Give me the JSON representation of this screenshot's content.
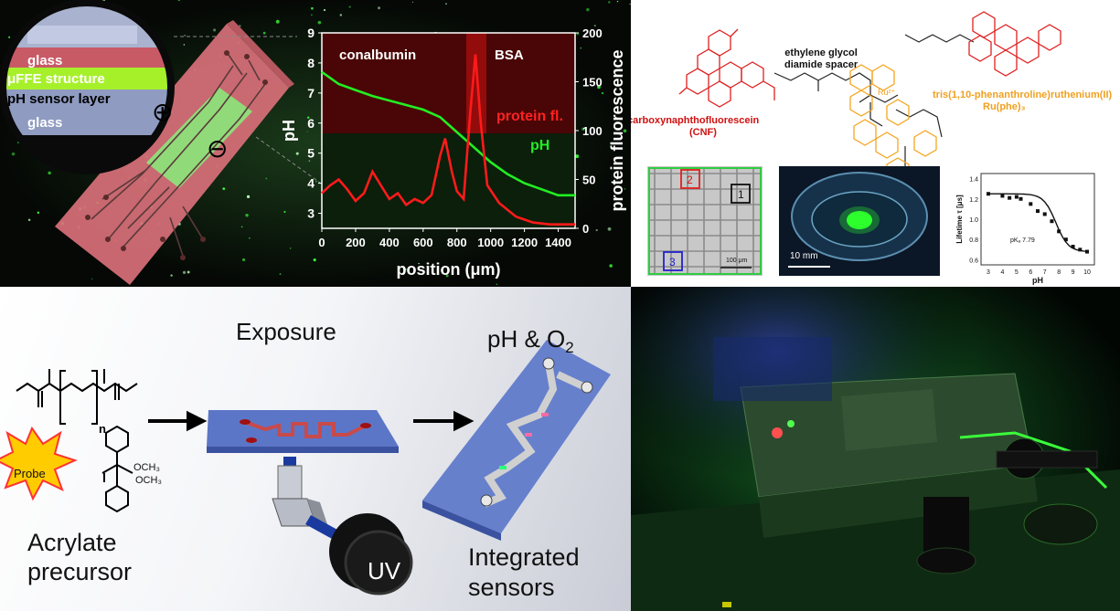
{
  "top_left": {
    "layers": {
      "glass_top": "glass",
      "ffe": "μFFE structure",
      "sensor": "pH sensor layer",
      "glass_bottom": "glass"
    },
    "plus_symbol": "⊕",
    "minus_symbol": "⊖",
    "overlay_labels": {
      "conalbumin": "conalbumin",
      "bsa": "BSA",
      "protein_fl": "protein fl.",
      "ph": "pH"
    }
  },
  "chart_data": {
    "type": "line",
    "xlabel": "position (μm)",
    "ylabel": "pH",
    "y2label": "protein fluorescence",
    "xlim": [
      0,
      1500
    ],
    "ylim": [
      2.5,
      9
    ],
    "y2lim": [
      0,
      200
    ],
    "xticks": [
      "0",
      "200",
      "400",
      "600",
      "800",
      "1000",
      "1200",
      "1400"
    ],
    "yticks": [
      "3",
      "4",
      "5",
      "6",
      "7",
      "8",
      "9"
    ],
    "y2ticks": [
      "0",
      "50",
      "100",
      "150",
      "200"
    ],
    "series": [
      {
        "name": "pH",
        "axis": "left",
        "color": "#22ee22",
        "x": [
          0,
          100,
          200,
          300,
          400,
          500,
          600,
          700,
          800,
          900,
          1000,
          1100,
          1200,
          1300,
          1400,
          1500
        ],
        "y": [
          7.7,
          7.3,
          7.1,
          6.9,
          6.75,
          6.6,
          6.45,
          6.2,
          5.7,
          5.2,
          4.7,
          4.3,
          4.0,
          3.8,
          3.6,
          3.6
        ]
      },
      {
        "name": "protein fluorescence",
        "axis": "right",
        "color": "#ff1a1a",
        "x": [
          0,
          50,
          100,
          150,
          200,
          250,
          300,
          350,
          400,
          450,
          500,
          550,
          600,
          650,
          700,
          730,
          770,
          800,
          840,
          880,
          910,
          940,
          980,
          1050,
          1150,
          1250,
          1350,
          1450,
          1500
        ],
        "y": [
          36,
          44,
          50,
          40,
          28,
          36,
          58,
          44,
          30,
          36,
          24,
          30,
          26,
          34,
          74,
          92,
          58,
          38,
          30,
          120,
          178,
          110,
          44,
          26,
          12,
          6,
          4,
          4,
          4
        ]
      }
    ]
  },
  "top_right": {
    "spacer_label": "ethylene glycol\ndiamide spacer",
    "cnf_name": "carboxynaphthofluorescein",
    "cnf_abbrev": "(CNF)",
    "ru_name": "tris(1,10-phenanthroline)ruthenium(II)",
    "ru_abbrev": "Ru(phe)₃",
    "ru_symbol": "Ru²⁺",
    "grid_cells": [
      "2",
      "1",
      "3"
    ],
    "grid_scale": "100 μm",
    "dish_scale": "10 mm",
    "lifetime_chart": {
      "ylabel": "Lifetime τ [μs]",
      "xlabel": "pH",
      "xticks": [
        "3",
        "4",
        "5",
        "6",
        "7",
        "8",
        "9",
        "10"
      ],
      "yticks": [
        "0.6",
        "0.8",
        "1.0",
        "1.2",
        "1.4"
      ],
      "pka_label": "pKₐ 7.79",
      "points_x": [
        3,
        4,
        4.5,
        5,
        5.3,
        6,
        6.5,
        7,
        7.5,
        8,
        8.5,
        9,
        9.5,
        10
      ],
      "points_y": [
        1.25,
        1.23,
        1.21,
        1.22,
        1.2,
        1.15,
        1.08,
        1.05,
        0.98,
        0.88,
        0.8,
        0.73,
        0.7,
        0.68
      ]
    }
  },
  "bottom_left": {
    "exposure": "Exposure",
    "ph_o2": "pH & O",
    "o2_sub": "2",
    "probe": "Probe",
    "n_label": "n",
    "och3_1": "OCH₃",
    "och3_2": "OCH₃",
    "uv": "UV",
    "acrylate_precursor": "Acrylate\nprecursor",
    "integrated_sensors": "Integrated\nsensors"
  }
}
